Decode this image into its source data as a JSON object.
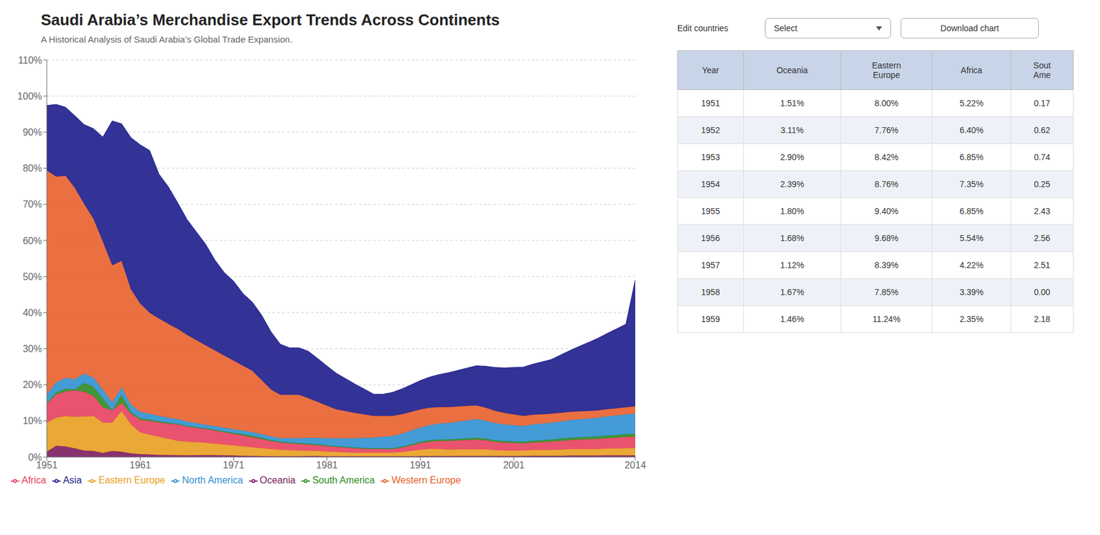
{
  "chart_data": {
    "type": "area",
    "title": "Saudi Arabia’s Merchandise Export Trends Across Continents",
    "subtitle": "A Historical Analysis of Saudi Arabia’s Global Trade Expansion.",
    "stacked": true,
    "x": [
      1951,
      1952,
      1953,
      1954,
      1955,
      1956,
      1957,
      1958,
      1959,
      1960,
      1961,
      1962,
      1963,
      1964,
      1965,
      1966,
      1967,
      1968,
      1969,
      1970,
      1971,
      1972,
      1973,
      1974,
      1975,
      1976,
      1977,
      1978,
      1979,
      1980,
      1981,
      1982,
      1983,
      1984,
      1985,
      1986,
      1987,
      1988,
      1989,
      1990,
      1991,
      1992,
      1993,
      1994,
      1995,
      1996,
      1997,
      1998,
      1999,
      2000,
      2001,
      2002,
      2003,
      2004,
      2005,
      2006,
      2007,
      2008,
      2009,
      2010,
      2011,
      2012,
      2013,
      2014
    ],
    "series": [
      {
        "name": "Oceania",
        "color": "#7B1C5E",
        "values": [
          1.51,
          3.11,
          2.9,
          2.39,
          1.8,
          1.68,
          1.12,
          1.67,
          1.46,
          1.0,
          0.8,
          0.7,
          0.6,
          0.55,
          0.5,
          0.45,
          0.5,
          0.55,
          0.5,
          0.45,
          0.4,
          0.35,
          0.3,
          0.25,
          0.2,
          0.2,
          0.2,
          0.2,
          0.25,
          0.25,
          0.2,
          0.2,
          0.2,
          0.2,
          0.2,
          0.2,
          0.2,
          0.2,
          0.2,
          0.2,
          0.25,
          0.25,
          0.25,
          0.25,
          0.3,
          0.3,
          0.3,
          0.3,
          0.3,
          0.3,
          0.3,
          0.3,
          0.35,
          0.35,
          0.35,
          0.35,
          0.4,
          0.4,
          0.4,
          0.4,
          0.45,
          0.45,
          0.45,
          0.45
        ]
      },
      {
        "name": "Eastern Europe",
        "color": "#E8A020",
        "values": [
          8.0,
          7.76,
          8.42,
          8.76,
          9.4,
          9.68,
          8.39,
          7.85,
          11.24,
          8.0,
          6.0,
          5.5,
          5.0,
          4.5,
          4.0,
          3.8,
          3.6,
          3.4,
          3.2,
          3.0,
          2.8,
          2.6,
          2.4,
          2.2,
          2.0,
          1.8,
          1.7,
          1.6,
          1.5,
          1.4,
          1.3,
          1.2,
          1.1,
          1.0,
          1.0,
          1.0,
          1.0,
          1.0,
          1.2,
          1.5,
          1.8,
          2.0,
          2.0,
          1.8,
          1.8,
          1.8,
          1.8,
          1.8,
          1.6,
          1.5,
          1.5,
          1.5,
          1.6,
          1.6,
          1.6,
          1.7,
          1.8,
          1.8,
          1.8,
          1.8,
          1.9,
          1.9,
          2.0,
          2.0
        ]
      },
      {
        "name": "Africa",
        "color": "#E84060",
        "values": [
          5.22,
          6.4,
          6.85,
          7.35,
          6.85,
          5.54,
          4.22,
          3.39,
          2.35,
          3.0,
          3.5,
          3.8,
          4.0,
          4.2,
          4.5,
          4.2,
          4.0,
          3.8,
          3.6,
          3.4,
          3.2,
          3.0,
          2.8,
          2.5,
          2.2,
          2.0,
          1.9,
          1.8,
          1.7,
          1.6,
          1.5,
          1.4,
          1.3,
          1.2,
          1.1,
          1.0,
          1.0,
          1.0,
          1.2,
          1.5,
          1.8,
          2.0,
          2.2,
          2.4,
          2.5,
          2.6,
          2.7,
          2.5,
          2.3,
          2.2,
          2.1,
          2.0,
          2.1,
          2.2,
          2.3,
          2.4,
          2.5,
          2.6,
          2.7,
          2.8,
          2.9,
          3.0,
          3.1,
          3.2
        ]
      },
      {
        "name": "South America",
        "color": "#2E8B20",
        "values": [
          0.17,
          0.62,
          0.74,
          0.25,
          2.43,
          2.56,
          2.51,
          0.0,
          2.18,
          0.5,
          0.4,
          0.35,
          0.3,
          0.25,
          0.2,
          0.2,
          0.2,
          0.2,
          0.25,
          0.25,
          0.3,
          0.35,
          0.4,
          0.35,
          0.3,
          0.25,
          0.25,
          0.25,
          0.25,
          0.25,
          0.2,
          0.2,
          0.2,
          0.2,
          0.2,
          0.2,
          0.2,
          0.2,
          0.25,
          0.3,
          0.35,
          0.4,
          0.4,
          0.4,
          0.4,
          0.45,
          0.5,
          0.45,
          0.4,
          0.4,
          0.4,
          0.4,
          0.45,
          0.5,
          0.55,
          0.6,
          0.6,
          0.65,
          0.65,
          0.7,
          0.7,
          0.75,
          0.75,
          0.8
        ]
      },
      {
        "name": "North America",
        "color": "#3090D0",
        "values": [
          2.5,
          2.8,
          3.0,
          2.8,
          2.6,
          2.5,
          2.4,
          2.2,
          2.1,
          2.0,
          1.8,
          1.6,
          1.5,
          1.4,
          1.3,
          1.2,
          1.1,
          1.0,
          1.0,
          1.0,
          1.0,
          1.0,
          1.0,
          1.0,
          1.0,
          1.0,
          1.2,
          1.4,
          1.6,
          1.8,
          2.0,
          2.2,
          2.4,
          2.6,
          2.8,
          3.0,
          3.2,
          3.4,
          3.6,
          3.8,
          4.0,
          4.2,
          4.4,
          4.6,
          4.8,
          5.0,
          5.2,
          5.0,
          4.8,
          4.6,
          4.5,
          4.4,
          4.5,
          4.6,
          4.7,
          4.8,
          4.9,
          5.0,
          5.1,
          5.2,
          5.3,
          5.4,
          5.5,
          5.6
        ]
      },
      {
        "name": "Western Europe",
        "color": "#E8612C",
        "values": [
          62.0,
          57.0,
          56.0,
          53.0,
          47.0,
          44.0,
          41.0,
          38.0,
          35.0,
          32.0,
          30.0,
          28.0,
          27.0,
          26.0,
          25.0,
          24.0,
          23.0,
          22.0,
          21.0,
          20.0,
          19.0,
          18.0,
          17.0,
          15.0,
          13.0,
          12.0,
          12.0,
          12.0,
          11.0,
          10.0,
          9.0,
          8.0,
          7.5,
          7.0,
          6.5,
          6.0,
          5.8,
          5.6,
          5.4,
          5.2,
          5.0,
          4.8,
          4.6,
          4.4,
          4.2,
          4.0,
          3.8,
          3.6,
          3.4,
          3.2,
          3.0,
          2.8,
          2.7,
          2.6,
          2.5,
          2.4,
          2.3,
          2.2,
          2.1,
          2.0,
          2.0,
          2.0,
          2.0,
          2.0
        ]
      },
      {
        "name": "Asia",
        "color": "#1C1C8C",
        "values": [
          18.0,
          20.0,
          19.0,
          20.0,
          22.0,
          25.0,
          29.0,
          40.0,
          38.0,
          42.0,
          44.0,
          45.0,
          40.0,
          38.0,
          35.0,
          32.0,
          30.0,
          28.0,
          25.0,
          23.0,
          22.0,
          20.0,
          19.0,
          18.0,
          16.0,
          14.0,
          13.0,
          13.0,
          13.0,
          12.0,
          11.0,
          10.0,
          9.0,
          8.0,
          7.0,
          6.0,
          6.0,
          6.5,
          7.0,
          7.5,
          8.0,
          8.5,
          9.0,
          9.5,
          10.0,
          10.5,
          11.0,
          11.5,
          12.0,
          12.5,
          13.0,
          13.5,
          14.0,
          14.5,
          15.0,
          16.0,
          17.0,
          18.0,
          19.0,
          20.0,
          21.0,
          22.0,
          23.0,
          35.0
        ]
      }
    ],
    "xlim": [
      1951,
      2014
    ],
    "xticks": [
      1951,
      1961,
      1971,
      1981,
      1991,
      2001,
      2014
    ],
    "ylim": [
      0,
      110
    ],
    "yticks": [
      {
        "value": 0,
        "label": "0%"
      },
      {
        "value": 10,
        "label": "10%"
      },
      {
        "value": 20,
        "label": "20%"
      },
      {
        "value": 30,
        "label": "30%"
      },
      {
        "value": 40,
        "label": "40%"
      },
      {
        "value": 50,
        "label": "50%"
      },
      {
        "value": 60,
        "label": "60%"
      },
      {
        "value": 70,
        "label": "70%"
      },
      {
        "value": 80,
        "label": "80%"
      },
      {
        "value": 90,
        "label": "90%"
      },
      {
        "value": 100,
        "label": "100%"
      },
      {
        "value": 110,
        "label": "110%"
      }
    ],
    "grid": true,
    "legend": "lower left",
    "annotations": [
      "Edit countries",
      "Select",
      "Download chart"
    ],
    "table": {
      "columns": [
        "Year",
        "Oceania",
        "Eastern\nEurope",
        "Africa",
        "Sout\nAme"
      ],
      "rows": [
        [
          "1951",
          "1.51%",
          "8.00%",
          "5.22%",
          "0.17"
        ],
        [
          "1952",
          "3.11%",
          "7.76%",
          "6.40%",
          "0.62"
        ],
        [
          "1953",
          "2.90%",
          "8.42%",
          "6.85%",
          "0.74"
        ],
        [
          "1954",
          "2.39%",
          "8.76%",
          "7.35%",
          "0.25"
        ],
        [
          "1955",
          "1.80%",
          "9.40%",
          "6.85%",
          "2.43"
        ],
        [
          "1956",
          "1.68%",
          "9.68%",
          "5.54%",
          "2.56"
        ],
        [
          "1957",
          "1.12%",
          "8.39%",
          "4.22%",
          "2.51"
        ],
        [
          "1958",
          "1.67%",
          "7.85%",
          "3.39%",
          "0.00"
        ],
        [
          "1959",
          "1.46%",
          "11.24%",
          "2.35%",
          "2.18"
        ]
      ]
    }
  }
}
